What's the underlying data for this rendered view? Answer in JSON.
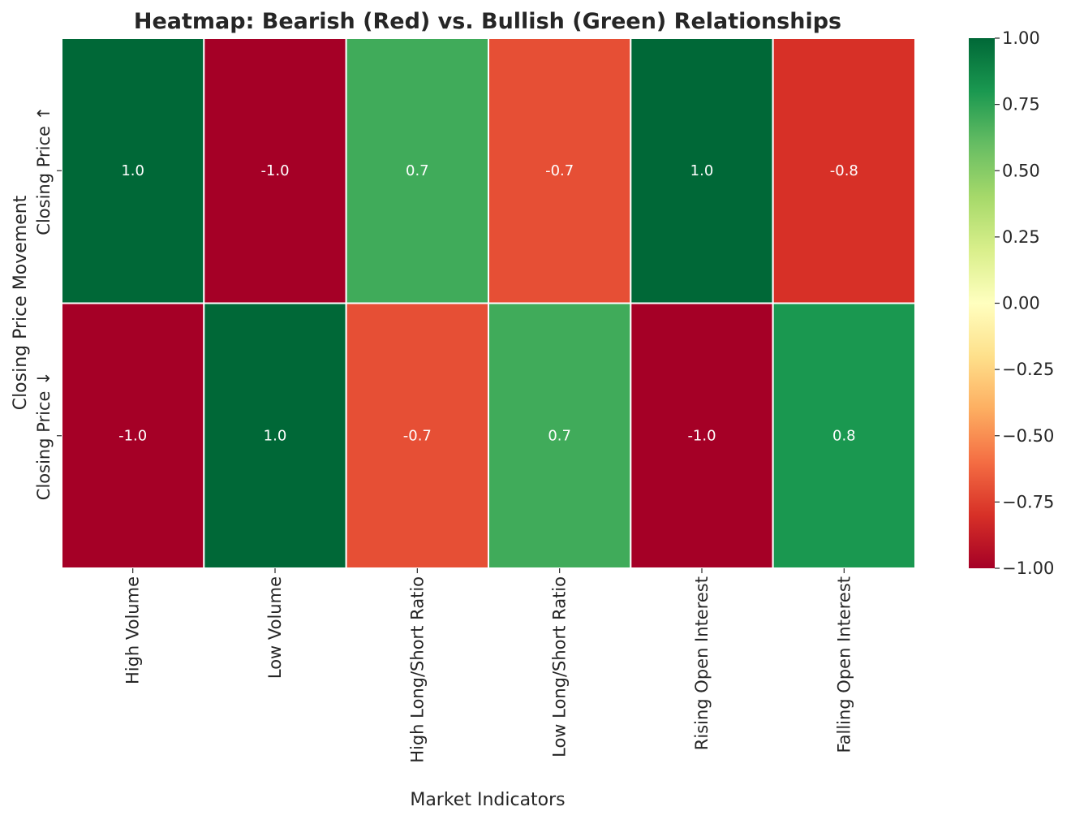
{
  "chart_data": {
    "type": "heatmap",
    "title": "Heatmap: Bearish (Red) vs. Bullish (Green) Relationships",
    "xlabel": "Market Indicators",
    "ylabel": "Closing Price Movement",
    "x_categories": [
      "High Volume",
      "Low Volume",
      "High Long/Short Ratio",
      "Low Long/Short Ratio",
      "Rising Open Interest",
      "Falling Open Interest"
    ],
    "y_categories": [
      "Closing Price ↑",
      "Closing Price ↓"
    ],
    "values": [
      [
        1.0,
        -1.0,
        0.7,
        -0.7,
        1.0,
        -0.8
      ],
      [
        -1.0,
        1.0,
        -0.7,
        0.7,
        -1.0,
        0.8
      ]
    ],
    "cell_labels": [
      [
        "1.0",
        "-1.0",
        "0.7",
        "-0.7",
        "1.0",
        "-0.8"
      ],
      [
        "-1.0",
        "1.0",
        "-0.7",
        "0.7",
        "-1.0",
        "0.8"
      ]
    ],
    "colormap": "RdYlGn",
    "colors": {
      "bearish": "#a50026",
      "bullish": "#006837"
    },
    "vmin": -1.0,
    "vmax": 1.0,
    "colorbar_ticks": [
      1.0,
      0.75,
      0.5,
      0.25,
      0.0,
      -0.25,
      -0.5,
      -0.75,
      -1.0
    ],
    "colorbar_tick_labels": [
      "1.00",
      "0.75",
      "0.50",
      "0.25",
      "0.00",
      "−0.25",
      "−0.50",
      "−0.75",
      "−1.00"
    ]
  }
}
